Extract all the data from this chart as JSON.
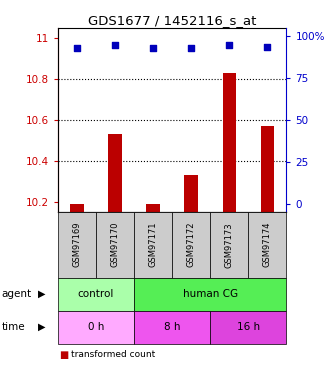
{
  "title": "GDS1677 / 1452116_s_at",
  "samples": [
    "GSM97169",
    "GSM97170",
    "GSM97171",
    "GSM97172",
    "GSM97173",
    "GSM97174"
  ],
  "transformed_counts": [
    10.19,
    10.53,
    10.19,
    10.33,
    10.83,
    10.57
  ],
  "percentile_ranks": [
    93,
    95,
    93,
    93,
    95,
    94
  ],
  "ylim_left": [
    10.15,
    11.05
  ],
  "ylim_right": [
    -5,
    105
  ],
  "yticks_left": [
    10.2,
    10.4,
    10.6,
    10.8,
    11.0
  ],
  "yticks_right": [
    0,
    25,
    50,
    75,
    100
  ],
  "ytick_labels_left": [
    "10.2",
    "10.4",
    "10.6",
    "10.8",
    "11"
  ],
  "ytick_labels_right": [
    "0",
    "25",
    "50",
    "75",
    "100%"
  ],
  "bar_color": "#bb0000",
  "dot_color": "#0000bb",
  "agent_groups": [
    {
      "label": "control",
      "span": [
        0,
        2
      ],
      "color": "#aaffaa"
    },
    {
      "label": "human CG",
      "span": [
        2,
        6
      ],
      "color": "#55ee55"
    }
  ],
  "time_groups": [
    {
      "label": "0 h",
      "span": [
        0,
        2
      ],
      "color": "#ffaaff"
    },
    {
      "label": "8 h",
      "span": [
        2,
        4
      ],
      "color": "#ee55ee"
    },
    {
      "label": "16 h",
      "span": [
        4,
        6
      ],
      "color": "#dd44dd"
    }
  ],
  "sample_box_color": "#cccccc",
  "left_axis_color": "#cc0000",
  "right_axis_color": "#0000cc",
  "grid_color": "#000000",
  "grid_ticks": [
    10.4,
    10.6,
    10.8
  ]
}
